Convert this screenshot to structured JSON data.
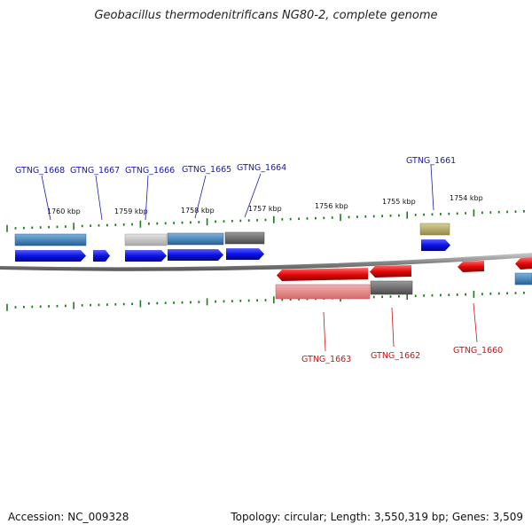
{
  "title": "Geobacillus thermodenitrificans NG80-2, complete genome",
  "footer": {
    "accession": "Accession: NC_009328",
    "summary": "Topology: circular; Length: 3,550,319 bp; Genes: 3,509"
  },
  "scale_labels": [
    "1760 kbp",
    "1759 kbp",
    "1758 kbp",
    "1757 kbp",
    "1756 kbp",
    "1755 kbp",
    "1754 kbp"
  ],
  "genes_forward": [
    "GTNG_1668",
    "GTNG_1667",
    "GTNG_1666",
    "GTNG_1665",
    "GTNG_1664",
    "GTNG_1661"
  ],
  "genes_reverse": [
    "GTNG_1663",
    "GTNG_1662",
    "GTNG_1660"
  ],
  "colors": {
    "forward_gene": "#0a14e6",
    "reverse_gene": "#e60a0a",
    "cog_blue": "#4a86bd",
    "cog_gray_light": "#bdbdbd",
    "cog_gray_dark": "#6a6a6a",
    "cog_olive": "#b5ab6a",
    "cog_pink": "#e88a8a",
    "tick_green": "#1e7a1e",
    "backbone": "#8a8a8a"
  }
}
